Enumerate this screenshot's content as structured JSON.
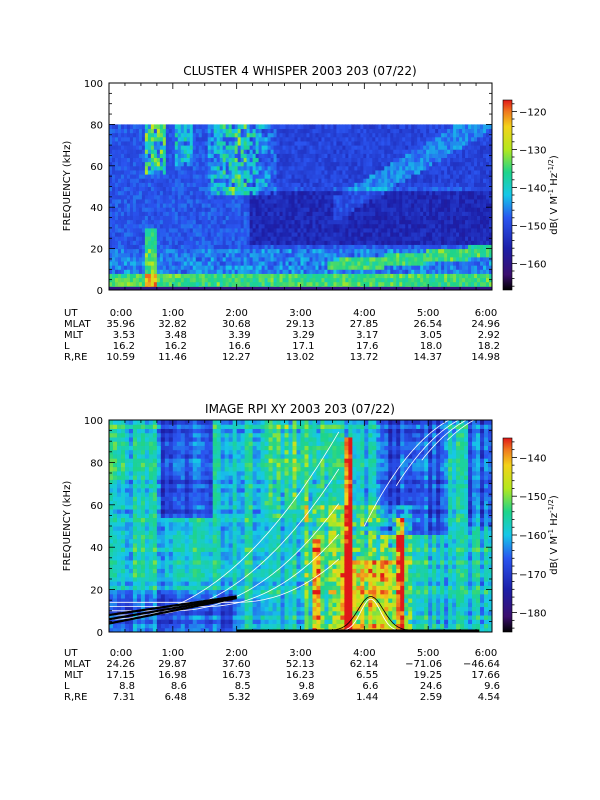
{
  "chart_data": [
    {
      "type": "heatmap",
      "title": "CLUSTER 4 WHISPER 2003 203 (07/22)",
      "ylabel": "FREQUENCY (kHz)",
      "ylim": [
        0,
        100
      ],
      "yticks": [
        0,
        20,
        40,
        60,
        80,
        100
      ],
      "xlim_hours": [
        0,
        6
      ],
      "data_ceiling_khz": 80,
      "colorbar": {
        "label": "dB( V M⁻¹ Hz⁻¹ᐟ²)",
        "label_parts": [
          "dB( V M",
          "-1",
          " Hz",
          "-1/2",
          ")"
        ],
        "range": [
          -167,
          -117
        ],
        "ticks": [
          -120,
          -130,
          -140,
          -150,
          -160
        ],
        "tick_labels": [
          "−120",
          "−130",
          "−140",
          "−150",
          "−160"
        ]
      },
      "ephemeris": {
        "row_labels": [
          "UT",
          "MLAT",
          "MLT",
          "L",
          "R,RE"
        ],
        "columns": [
          [
            "0:00",
            "35.96",
            "3.53",
            "16.2",
            "10.59"
          ],
          [
            "1:00",
            "32.82",
            "3.48",
            "16.2",
            "11.46"
          ],
          [
            "2:00",
            "30.68",
            "3.39",
            "16.6",
            "12.27"
          ],
          [
            "3:00",
            "29.13",
            "3.29",
            "17.1",
            "13.02"
          ],
          [
            "4:00",
            "27.85",
            "3.17",
            "17.6",
            "13.72"
          ],
          [
            "5:00",
            "26.54",
            "3.05",
            "18.0",
            "14.37"
          ],
          [
            "6:00",
            "24.96",
            "2.92",
            "18.2",
            "14.98"
          ]
        ]
      }
    },
    {
      "type": "heatmap",
      "title": "IMAGE RPI XY 2003 203 (07/22)",
      "ylabel": "FREQUENCY (kHz)",
      "ylim": [
        0,
        100
      ],
      "yticks": [
        0,
        20,
        40,
        60,
        80,
        100
      ],
      "xlim_hours": [
        0,
        6
      ],
      "colorbar": {
        "label": "dB( V M⁻¹ Hz⁻¹ᐟ²)",
        "label_parts": [
          "dB( V M",
          "-1",
          " Hz",
          "-1/2",
          ")"
        ],
        "range": [
          -185,
          -135
        ],
        "ticks": [
          -140,
          -150,
          -160,
          -170,
          -180
        ],
        "tick_labels": [
          "−140",
          "−150",
          "−160",
          "−170",
          "−180"
        ]
      },
      "ephemeris": {
        "row_labels": [
          "UT",
          "MLAT",
          "MLT",
          "L",
          "R,RE"
        ],
        "columns": [
          [
            "0:00",
            "24.26",
            "17.15",
            "8.8",
            "7.31"
          ],
          [
            "1:00",
            "29.87",
            "16.98",
            "8.6",
            "6.48"
          ],
          [
            "2:00",
            "37.60",
            "16.73",
            "8.5",
            "5.32"
          ],
          [
            "3:00",
            "52.13",
            "16.23",
            "9.8",
            "3.69"
          ],
          [
            "4:00",
            "62.14",
            "6.55",
            "6.6",
            "1.44"
          ],
          [
            "5:00",
            "−71.06",
            "19.25",
            "24.6",
            "2.59"
          ],
          [
            "6:00",
            "−46.64",
            "17.66",
            "9.6",
            "4.54"
          ]
        ]
      }
    }
  ]
}
